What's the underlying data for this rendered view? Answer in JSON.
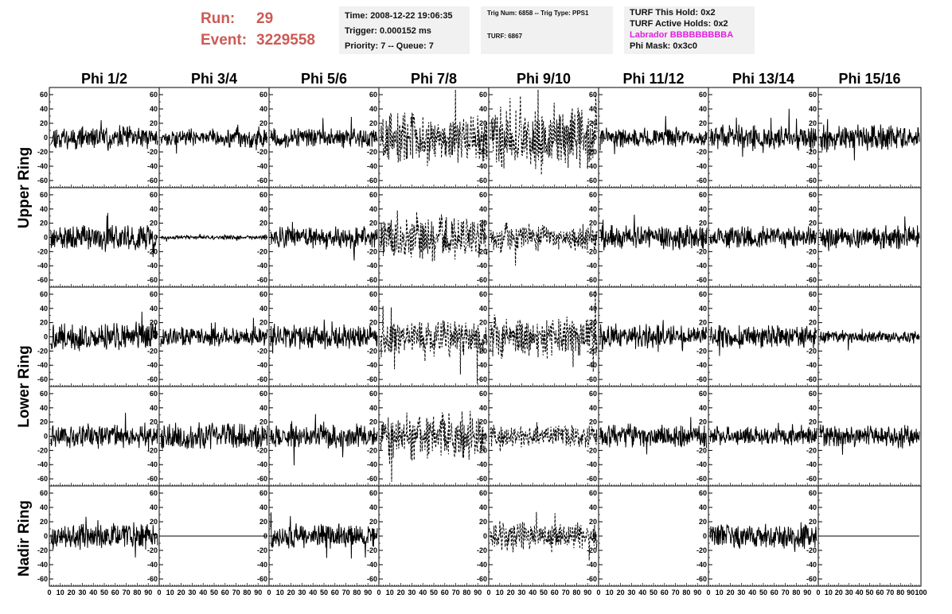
{
  "header": {
    "run_label": "Run:",
    "run_value": "29",
    "event_label": "Event:",
    "event_value": "3229558"
  },
  "time_box": {
    "time": "Time: 2008-12-22 19:06:35",
    "trigger": "Trigger: 0.000152 ms",
    "priority": "Priority: 7 -- Queue: 7"
  },
  "trig_box": {
    "trig": "Trig Num: 6858 -- Trig Type: PPS1",
    "turf": "TURF: 6867"
  },
  "turf_box": {
    "this_hold": "TURF This Hold: 0x2",
    "active_holds": "TURF Active Holds: 0x2",
    "labrador": "Labrador BBBBBBBBBA",
    "phi_mask": "Phi Mask: 0x3c0"
  },
  "colors": {
    "run_text": "#cc5a55",
    "labrador_text": "#e020e0",
    "box_background": "#f1f1f1",
    "trace": "#000000"
  },
  "chart_data": {
    "type": "line",
    "columns": [
      "Phi 1/2",
      "Phi 3/4",
      "Phi 5/6",
      "Phi 7/8",
      "Phi 9/10",
      "Phi 11/12",
      "Phi 13/14",
      "Phi 15/16"
    ],
    "ring_labels": [
      "Upper Ring",
      "Lower Ring",
      "Nadir Ring"
    ],
    "rows": 5,
    "xlim": [
      0,
      100
    ],
    "ylim": [
      -70,
      70
    ],
    "y_ticks": [
      60,
      40,
      20,
      0,
      -20,
      -40,
      -60
    ],
    "x_tick_labels": [
      "0",
      "10",
      "20",
      "30",
      "40",
      "50",
      "60",
      "70",
      "80",
      "90",
      "100"
    ],
    "samples": 260,
    "traces": [
      [
        {
          "amp": 12,
          "style": "solid"
        },
        {
          "amp": 10,
          "style": "solid"
        },
        {
          "amp": 10,
          "style": "solid"
        },
        {
          "amp": 25,
          "style": "dashed"
        },
        {
          "amp": 30,
          "style": "dashed"
        },
        {
          "amp": 10,
          "style": "solid"
        },
        {
          "amp": 13,
          "style": "solid"
        },
        {
          "amp": 13,
          "style": "solid"
        }
      ],
      [
        {
          "amp": 13,
          "style": "solid"
        },
        {
          "amp": 2,
          "style": "solid"
        },
        {
          "amp": 12,
          "style": "solid"
        },
        {
          "amp": 22,
          "style": "dashed"
        },
        {
          "amp": 15,
          "style": "dashed"
        },
        {
          "amp": 13,
          "style": "solid"
        },
        {
          "amp": 11,
          "style": "solid"
        },
        {
          "amp": 12,
          "style": "solid"
        }
      ],
      [
        {
          "amp": 15,
          "style": "solid"
        },
        {
          "amp": 10,
          "style": "solid"
        },
        {
          "amp": 13,
          "style": "solid"
        },
        {
          "amp": 20,
          "style": "dashed"
        },
        {
          "amp": 20,
          "style": "dashed"
        },
        {
          "amp": 13,
          "style": "solid"
        },
        {
          "amp": 12,
          "style": "solid"
        },
        {
          "amp": 6,
          "style": "solid"
        }
      ],
      [
        {
          "amp": 12,
          "style": "solid"
        },
        {
          "amp": 14,
          "style": "solid"
        },
        {
          "amp": 13,
          "style": "solid"
        },
        {
          "amp": 24,
          "style": "dashed"
        },
        {
          "amp": 12,
          "style": "dashed"
        },
        {
          "amp": 12,
          "style": "solid"
        },
        {
          "amp": 10,
          "style": "solid"
        },
        {
          "amp": 12,
          "style": "solid"
        }
      ],
      [
        {
          "amp": 13,
          "style": "solid"
        },
        {
          "amp": 0,
          "style": "solid"
        },
        {
          "amp": 13,
          "style": "solid"
        },
        {
          "amp": null,
          "style": "none"
        },
        {
          "amp": 14,
          "style": "dashed"
        },
        {
          "amp": null,
          "style": "none"
        },
        {
          "amp": 13,
          "style": "solid"
        },
        {
          "amp": 0,
          "style": "solid"
        }
      ]
    ]
  }
}
